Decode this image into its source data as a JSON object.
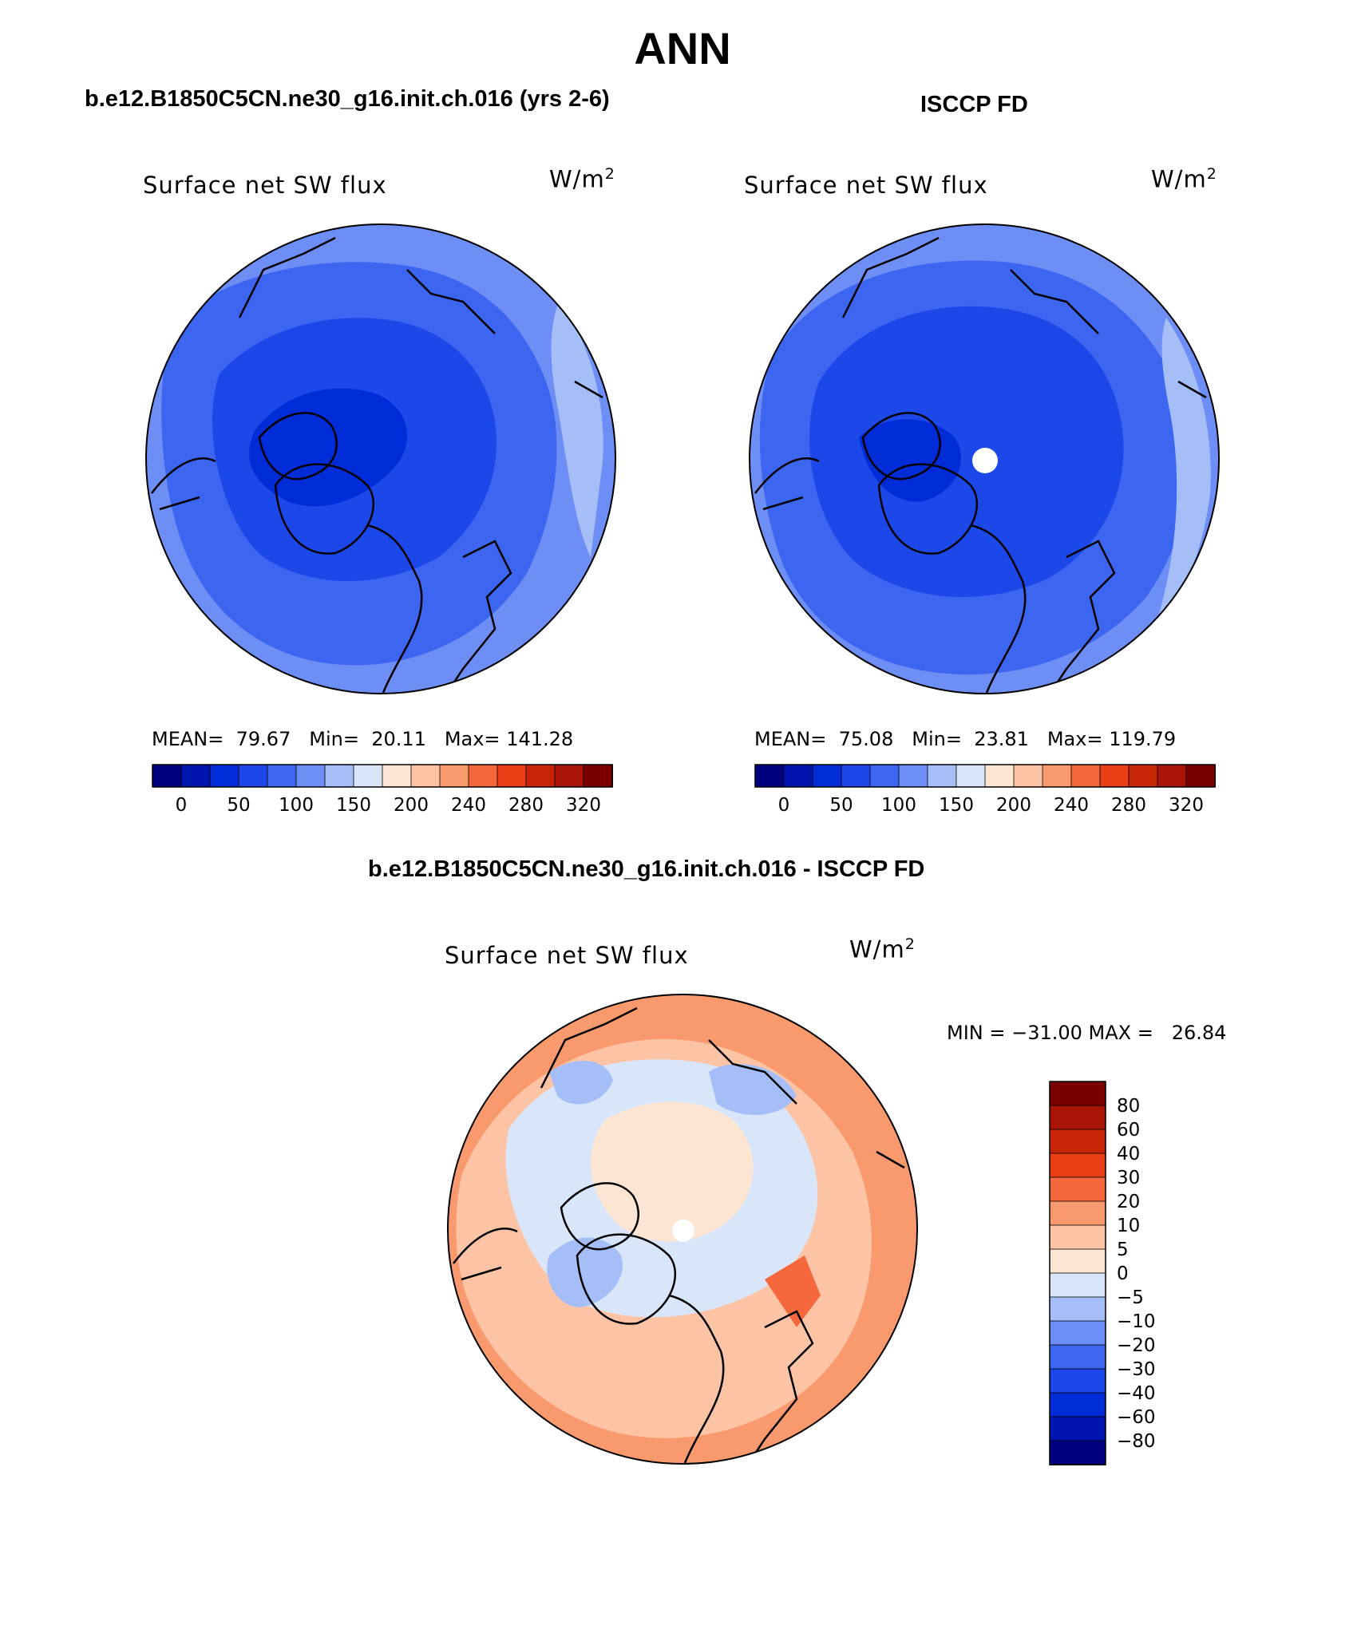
{
  "page": {
    "title": "ANN",
    "left_case": "b.e12.B1850C5CN.ne30_g16.init.ch.016 (yrs 2-6)",
    "right_case": "ISCCP FD",
    "diff_case": "b.e12.B1850C5CN.ne30_g16.init.ch.016 - ISCCP FD"
  },
  "panels": {
    "model": {
      "variable": "Surface net SW flux",
      "units": "W/m",
      "units_sup": "2",
      "mean_label": "MEAN=",
      "mean": "79.67",
      "min_label": "Min=",
      "min": "20.11",
      "max_label": "Max=",
      "max": "141.28"
    },
    "obs": {
      "variable": "Surface net SW flux",
      "units": "W/m",
      "units_sup": "2",
      "mean_label": "MEAN=",
      "mean": "75.08",
      "min_label": "Min=",
      "min": "23.81",
      "max_label": "Max=",
      "max": "119.79"
    },
    "diff": {
      "variable": "Surface net SW flux",
      "units": "W/m",
      "units_sup": "2",
      "minmax": "MIN = −31.00 MAX =   26.84"
    }
  },
  "colorbars": {
    "absolute": {
      "colors": [
        "#00007f",
        "#0015b0",
        "#002cd8",
        "#1c48ea",
        "#3d66f0",
        "#6d8ef5",
        "#a6bef8",
        "#d9e6fa",
        "#fde5d3",
        "#fcc4a4",
        "#f99a6e",
        "#f5683d",
        "#ea3e17",
        "#c82507",
        "#a81504",
        "#7a0000"
      ],
      "tick_labels": [
        "0",
        "50",
        "100",
        "150",
        "200",
        "240",
        "280",
        "320"
      ]
    },
    "difference": {
      "colors": [
        "#7a0000",
        "#a81504",
        "#c82507",
        "#ea3e17",
        "#f5683d",
        "#f99a6e",
        "#fcc4a4",
        "#fde5d3",
        "#d9e6fa",
        "#a6bef8",
        "#6d8ef5",
        "#3d66f0",
        "#1c48ea",
        "#002cd8",
        "#0015b0",
        "#00007f"
      ],
      "tick_labels": [
        "80",
        "60",
        "40",
        "30",
        "20",
        "10",
        "5",
        "0",
        "−5",
        "−10",
        "−20",
        "−30",
        "−40",
        "−60",
        "−80"
      ]
    }
  }
}
